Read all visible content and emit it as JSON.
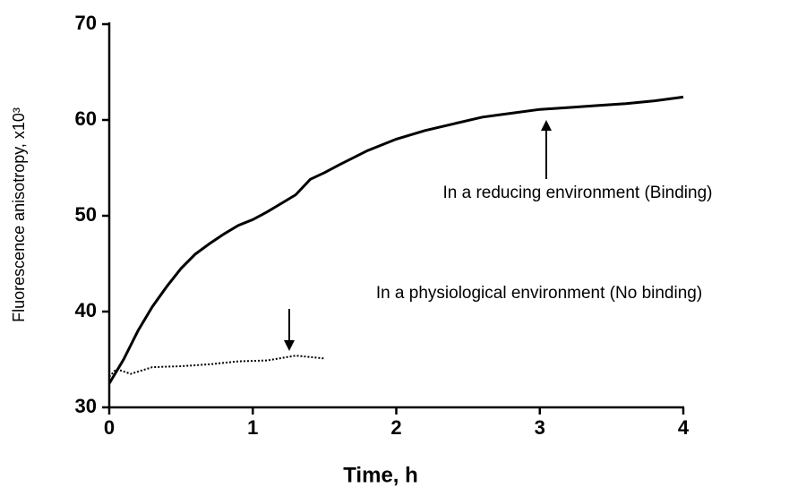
{
  "chart_data": {
    "type": "line",
    "xlabel": "Time, h",
    "ylabel": "Fluorescence anisotropy, x10³",
    "xlim": [
      0,
      4
    ],
    "xticks": [
      0,
      1,
      2,
      3,
      4
    ],
    "ylim": [
      30,
      70
    ],
    "yticks": [
      30,
      40,
      50,
      60,
      70
    ],
    "series": [
      {
        "color": "#000000",
        "line_style": "solid",
        "x": [
          0,
          0.1,
          0.2,
          0.3,
          0.4,
          0.5,
          0.6,
          0.7,
          0.8,
          0.9,
          1,
          1.1,
          1.2,
          1.3,
          1.4,
          1.5,
          1.6,
          1.8,
          2,
          2.2,
          2.4,
          2.6,
          2.8,
          3,
          3.2,
          3.4,
          3.6,
          3.8,
          4
        ],
        "values": [
          32.5,
          35,
          38,
          40.5,
          42.6,
          44.5,
          46,
          47.1,
          48.1,
          49,
          49.6,
          50.4,
          51.3,
          52.2,
          53.8,
          54.5,
          55.3,
          56.8,
          58,
          58.9,
          59.6,
          60.3,
          60.7,
          61.1,
          61.3,
          61.5,
          61.7,
          62,
          62.4
        ]
      },
      {
        "color": "#000000",
        "line_style": "dotted",
        "x": [
          0,
          0.05,
          0.15,
          0.3,
          0.5,
          0.7,
          0.9,
          1.1,
          1.3,
          1.5
        ],
        "values": [
          33.2,
          34,
          33.5,
          34.2,
          34.3,
          34.5,
          34.8,
          34.9,
          35.4,
          35.1
        ]
      }
    ],
    "annotations": [
      "In a reducing environment (Binding)",
      "In a physiological environment (No binding)"
    ]
  }
}
